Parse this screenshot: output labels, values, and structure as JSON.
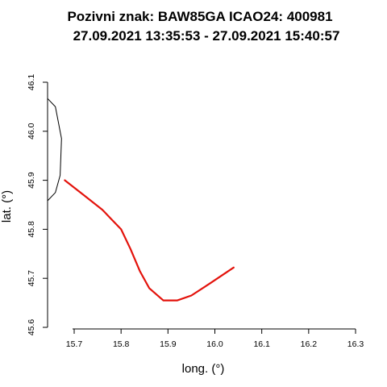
{
  "chart_data": {
    "type": "line",
    "title_line1": "Pozivni znak: BAW85GA  ICAO24: 400981",
    "title_line2": "27.09.2021 13:35:53 - 27.09.2021 15:40:57",
    "xlabel": "long. (°)",
    "ylabel": "lat. (°)",
    "xlim": [
      15.64,
      16.3
    ],
    "ylim": [
      45.6,
      46.1
    ],
    "x_ticks": [
      "15.7",
      "15.8",
      "15.9",
      "16.0",
      "16.1",
      "16.2",
      "16.3"
    ],
    "y_ticks": [
      "45.6",
      "45.7",
      "45.8",
      "45.9",
      "46.0",
      "46.1"
    ],
    "grid": false,
    "series": [
      {
        "color": "#000000",
        "x": [
          15.64,
          15.66,
          15.673,
          15.67,
          15.66,
          15.64
        ],
        "y": [
          46.07,
          46.05,
          45.985,
          45.91,
          45.875,
          45.855
        ]
      },
      {
        "color": "#e3120b",
        "x": [
          15.68,
          15.72,
          15.76,
          15.78,
          15.8,
          15.82,
          15.84,
          15.86,
          15.89,
          15.92,
          15.95,
          15.99,
          16.04
        ],
        "y": [
          45.9,
          45.87,
          45.84,
          45.82,
          45.8,
          45.76,
          45.715,
          45.68,
          45.655,
          45.655,
          45.665,
          45.69,
          45.722
        ]
      }
    ]
  }
}
